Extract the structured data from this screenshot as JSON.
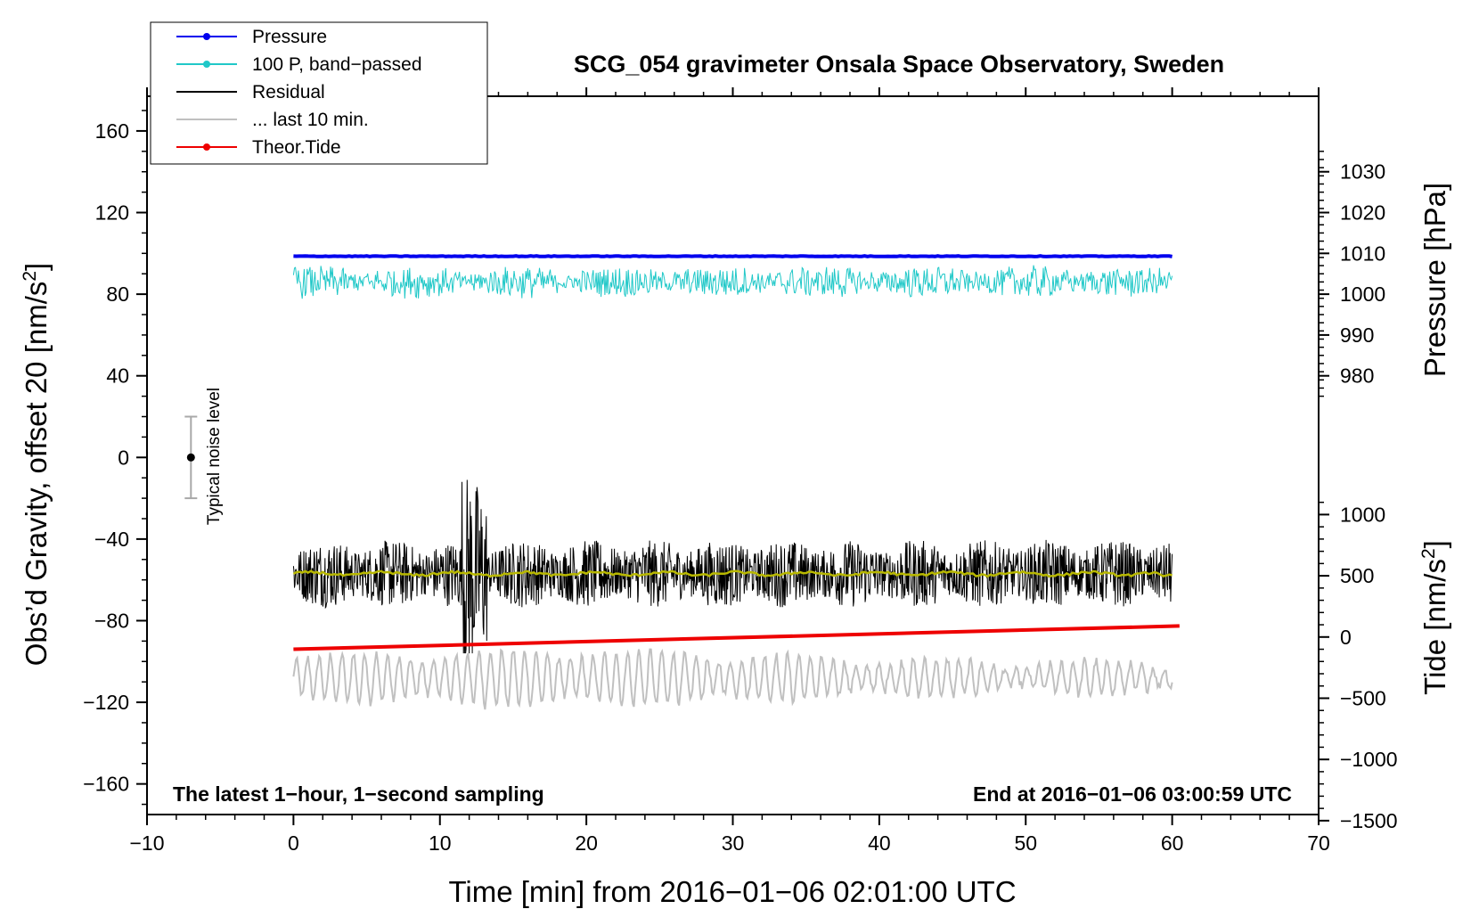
{
  "chart_data": {
    "type": "line",
    "title": "SCG_054 gravimeter Onsala Space Observatory, Sweden",
    "xlabel": "Time [min] from 2016−01−06 02:01:00 UTC",
    "ylabel_left": "Obs’d Gravity, offset 20 [nm/s",
    "ylabel_left_sup": "2",
    "ylabel_left_close": "]",
    "ylabel_right_top": "Pressure [hPa]",
    "ylabel_right_bottom": "Tide [nm/s",
    "ylabel_right_bottom_sup": "2",
    "ylabel_right_bottom_close": "]",
    "xlim": [
      -10,
      70
    ],
    "ylim_left": [
      -175,
      177
    ],
    "x_ticks": [
      -10,
      0,
      10,
      20,
      30,
      40,
      50,
      60,
      70
    ],
    "x_tick_labels": [
      "−10",
      "0",
      "10",
      "20",
      "30",
      "40",
      "50",
      "60",
      "70"
    ],
    "left_ticks": [
      160,
      120,
      80,
      40,
      0,
      -40,
      -80,
      -120,
      -160
    ],
    "left_tick_labels": [
      "160",
      "120",
      "80",
      "40",
      "0",
      "−40",
      "−80",
      "−120",
      "−160"
    ],
    "pressure_axis": {
      "ticks": [
        1030,
        1020,
        1010,
        1000,
        990,
        980
      ],
      "tick_labels": [
        "1030",
        "1020",
        "1010",
        "1000",
        "990",
        "980"
      ],
      "gravity_at_1000": 80,
      "gravity_per_hPa": 2
    },
    "tide_axis": {
      "ticks": [
        1000,
        500,
        0,
        -500,
        -1000,
        -1500
      ],
      "tick_labels": [
        "1000",
        "500",
        "0",
        "−500",
        "−1000",
        "−1500"
      ],
      "gravity_at_0": -88,
      "gravity_per_unit": 0.06
    },
    "notes": {
      "left": "The latest 1−hour, 1−second sampling",
      "right": "End at 2016−01−06 03:00:59 UTC"
    },
    "noise_marker": {
      "label": "Typical noise level",
      "x": -7,
      "center": 0,
      "low": -20,
      "high": 20
    },
    "legend": [
      {
        "label": "Pressure",
        "color": "#0000ee",
        "marker": true
      },
      {
        "label": "100 P, band−passed",
        "color": "#20c8c8",
        "marker": true
      },
      {
        "label": "Residual",
        "color": "#000000",
        "marker": false
      },
      {
        "label": "... last 10 min.",
        "color": "#c0c0c0",
        "marker": false
      },
      {
        "label": "Theor.Tide",
        "color": "#ee0000",
        "marker": true
      }
    ],
    "series": [
      {
        "name": "Pressure",
        "axis": "pressure",
        "color": "#0000ee",
        "x_range": [
          0,
          60
        ],
        "level_hPa": 1009.3,
        "noise_hPa": 0.15
      },
      {
        "name": "100 P, band−passed",
        "axis": "left",
        "color": "#20c8c8",
        "x_range": [
          0,
          60
        ],
        "level": 86,
        "amplitude": 4,
        "min": 68,
        "max": 105
      },
      {
        "name": "Residual",
        "axis": "left",
        "color": "#000000",
        "x_range": [
          0,
          60
        ],
        "level": -57,
        "amplitude": 8,
        "min": -96,
        "max": -11,
        "spike_at_min": 12.4
      },
      {
        "name": "Residual smoothed",
        "axis": "left",
        "color": "#b8b800",
        "x_range": [
          0,
          60
        ],
        "level": -57
      },
      {
        "name": "... last 10 min.",
        "axis": "left",
        "color": "#c0c0c0",
        "x_range": [
          0,
          60
        ],
        "level": -108,
        "amplitude": 9,
        "min": -130,
        "max": -85
      },
      {
        "name": "Theor.Tide",
        "axis": "tide",
        "color": "#ee0000",
        "x": [
          0,
          60.5
        ],
        "y": [
          -100,
          90
        ]
      }
    ]
  }
}
